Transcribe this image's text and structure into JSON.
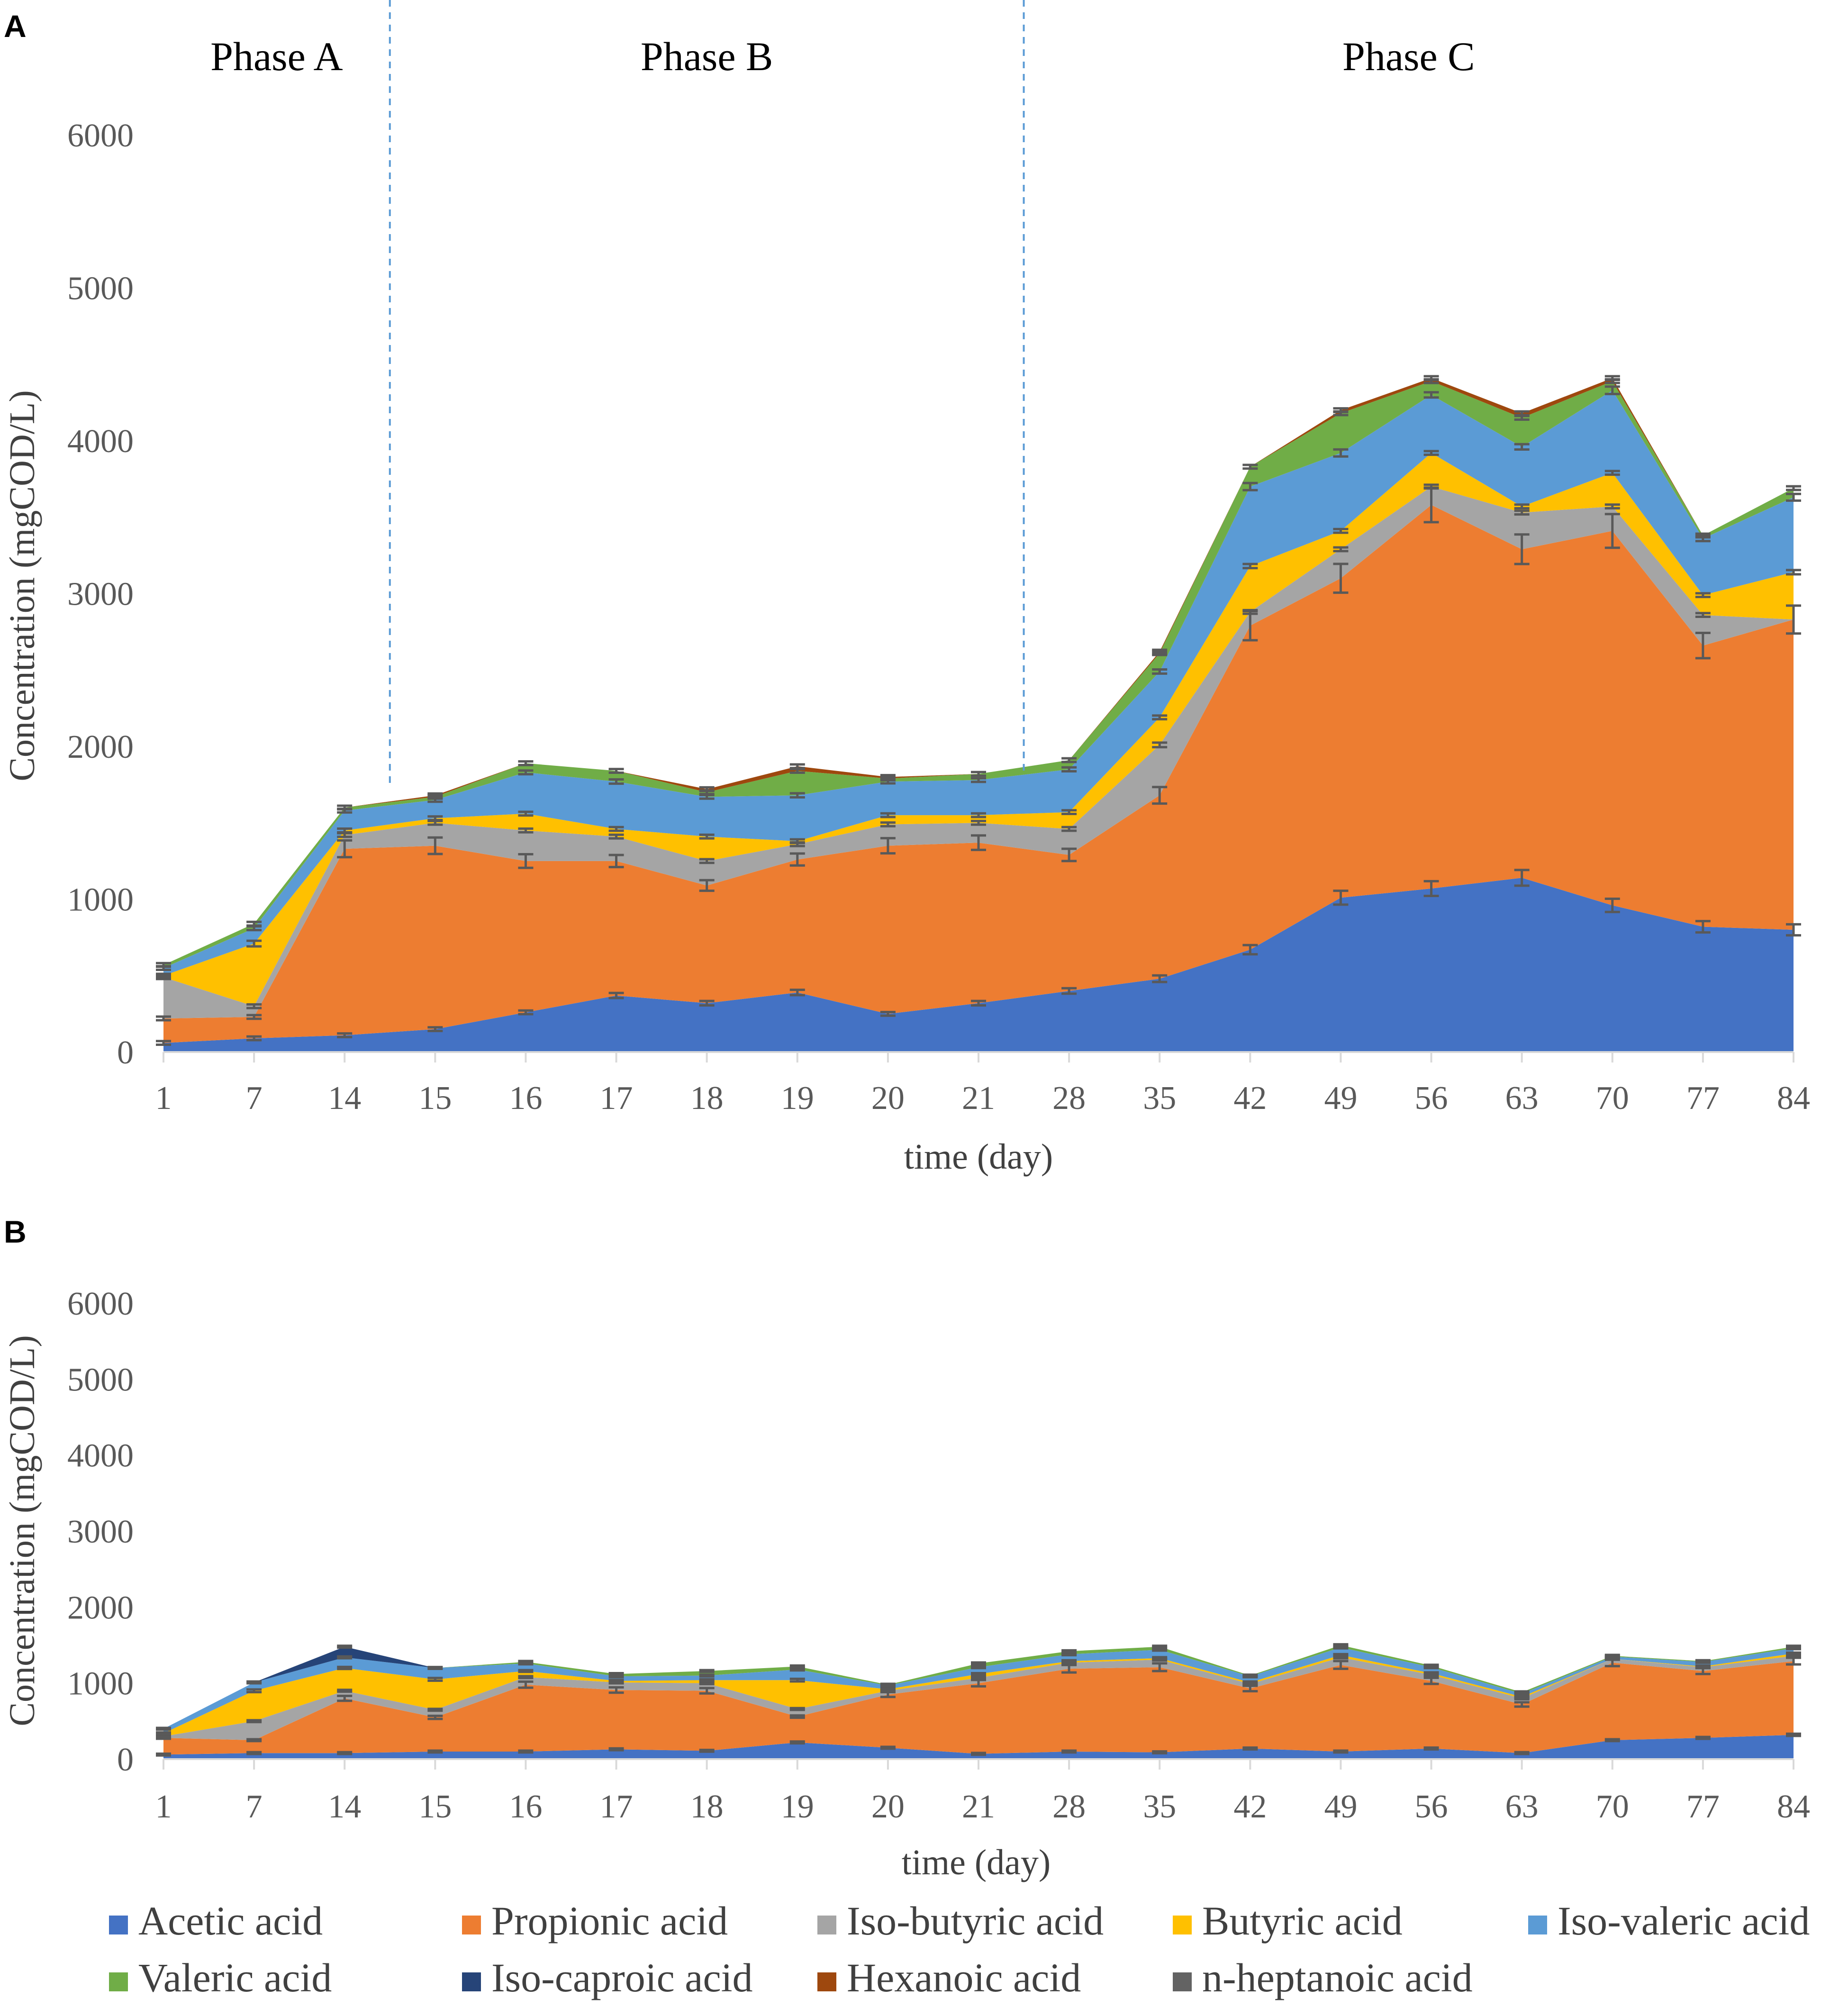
{
  "chart_data": [
    {
      "type": "area",
      "stacked": true,
      "panel_label": "A",
      "x": [
        "1",
        "7",
        "14",
        "15",
        "16",
        "17",
        "18",
        "19",
        "20",
        "21",
        "28",
        "35",
        "42",
        "49",
        "56",
        "63",
        "70",
        "77",
        "84"
      ],
      "xlabel": "time (day)",
      "ylabel": "Concentration (mgCOD/L)",
      "ylim": [
        0,
        6000
      ],
      "yticks": [
        "0",
        "1000",
        "2000",
        "3000",
        "4000",
        "5000",
        "6000"
      ],
      "phases": [
        {
          "label": "Phase A",
          "start_index": 0,
          "end_index": 2
        },
        {
          "label": "Phase B",
          "start_index": 3,
          "end_index": 9
        },
        {
          "label": "Phase C",
          "start_index": 10,
          "end_index": 18
        }
      ],
      "phase_boundaries_after_index": [
        2,
        9
      ],
      "error_bars": true,
      "series": [
        {
          "name": "Acetic acid",
          "values": [
            60,
            90,
            110,
            150,
            260,
            370,
            320,
            390,
            250,
            320,
            400,
            480,
            670,
            1010,
            1070,
            1140,
            960,
            820,
            800
          ]
        },
        {
          "name": "Propionic acid",
          "values": [
            160,
            140,
            1220,
            1200,
            990,
            880,
            770,
            870,
            1100,
            1050,
            890,
            1200,
            2120,
            2090,
            2510,
            2150,
            2450,
            1840,
            2030
          ]
        },
        {
          "name": "Iso-butyric acid",
          "values": [
            270,
            70,
            90,
            150,
            200,
            160,
            160,
            100,
            140,
            130,
            170,
            330,
            90,
            190,
            120,
            240,
            160,
            200,
            0
          ]
        },
        {
          "name": "Butyric acid",
          "values": [
            10,
            410,
            30,
            30,
            110,
            50,
            160,
            20,
            60,
            50,
            110,
            180,
            300,
            120,
            220,
            40,
            220,
            130,
            310
          ]
        },
        {
          "name": "Iso-valeric acid",
          "values": [
            50,
            100,
            130,
            120,
            270,
            310,
            260,
            300,
            220,
            230,
            280,
            300,
            520,
            510,
            380,
            390,
            540,
            370,
            490
          ]
        },
        {
          "name": "Valeric acid",
          "values": [
            20,
            30,
            20,
            20,
            60,
            70,
            30,
            160,
            20,
            40,
            60,
            120,
            130,
            260,
            90,
            190,
            60,
            20,
            60
          ]
        },
        {
          "name": "Iso-caproic acid",
          "values": [
            0,
            0,
            0,
            0,
            0,
            0,
            0,
            0,
            0,
            0,
            0,
            0,
            0,
            0,
            0,
            0,
            0,
            0,
            0
          ]
        },
        {
          "name": "Hexanoic acid",
          "values": [
            0,
            0,
            0,
            10,
            0,
            0,
            20,
            30,
            10,
            0,
            0,
            10,
            0,
            20,
            20,
            30,
            20,
            0,
            0
          ]
        },
        {
          "name": "n-heptanoic acid",
          "values": [
            0,
            0,
            0,
            0,
            0,
            0,
            0,
            0,
            0,
            0,
            0,
            0,
            0,
            0,
            0,
            0,
            0,
            0,
            0
          ]
        }
      ]
    },
    {
      "type": "area",
      "stacked": true,
      "panel_label": "B",
      "x": [
        "1",
        "7",
        "14",
        "15",
        "16",
        "17",
        "18",
        "19",
        "20",
        "21",
        "28",
        "35",
        "42",
        "49",
        "56",
        "63",
        "70",
        "77",
        "84"
      ],
      "xlabel": "time (day)",
      "ylabel": "Concentration (mgCOD/L)",
      "ylim": [
        0,
        6000
      ],
      "yticks": [
        "0",
        "1000",
        "2000",
        "3000",
        "4000",
        "5000",
        "6000"
      ],
      "error_bars": true,
      "series": [
        {
          "name": "Acetic acid",
          "values": [
            60,
            80,
            80,
            100,
            100,
            130,
            110,
            220,
            150,
            70,
            100,
            90,
            140,
            100,
            140,
            80,
            250,
            280,
            320
          ]
        },
        {
          "name": "Propionic acid",
          "values": [
            220,
            170,
            720,
            450,
            880,
            780,
            790,
            340,
            700,
            930,
            1090,
            1120,
            790,
            1140,
            890,
            640,
            1020,
            880,
            970
          ]
        },
        {
          "name": "Iso-butyric acid",
          "values": [
            20,
            250,
            100,
            100,
            100,
            100,
            100,
            100,
            50,
            70,
            80,
            100,
            60,
            100,
            80,
            80,
            50,
            50,
            70
          ]
        },
        {
          "name": "Butyric acid",
          "values": [
            40,
            400,
            300,
            400,
            80,
            20,
            40,
            380,
            20,
            50,
            20,
            20,
            20,
            30,
            20,
            20,
            0,
            10,
            30
          ]
        },
        {
          "name": "Iso-valeric acid",
          "values": [
            60,
            110,
            140,
            150,
            100,
            60,
            60,
            140,
            50,
            90,
            90,
            110,
            80,
            100,
            80,
            40,
            30,
            60,
            70
          ]
        },
        {
          "name": "Valeric acid",
          "values": [
            0,
            0,
            0,
            0,
            20,
            30,
            60,
            40,
            10,
            50,
            40,
            40,
            10,
            30,
            20,
            20,
            10,
            10,
            20
          ]
        },
        {
          "name": "Iso-caproic acid",
          "values": [
            0,
            0,
            140,
            0,
            0,
            0,
            0,
            0,
            0,
            0,
            0,
            0,
            0,
            0,
            0,
            0,
            0,
            0,
            0
          ]
        },
        {
          "name": "Hexanoic acid",
          "values": [
            0,
            0,
            0,
            0,
            0,
            0,
            0,
            0,
            0,
            0,
            0,
            0,
            0,
            0,
            0,
            0,
            0,
            0,
            0
          ]
        },
        {
          "name": "n-heptanoic acid",
          "values": [
            0,
            0,
            0,
            0,
            0,
            0,
            0,
            0,
            0,
            0,
            0,
            0,
            0,
            0,
            0,
            0,
            0,
            0,
            0
          ]
        }
      ]
    }
  ],
  "legend": [
    {
      "name": "Acetic acid",
      "color": "#4472C4"
    },
    {
      "name": "Propionic acid",
      "color": "#ED7D31"
    },
    {
      "name": "Iso-butyric acid",
      "color": "#A5A5A5"
    },
    {
      "name": "Butyric acid",
      "color": "#FFC000"
    },
    {
      "name": "Iso-valeric acid",
      "color": "#5B9BD5"
    },
    {
      "name": "Valeric acid",
      "color": "#70AD47"
    },
    {
      "name": "Iso-caproic acid",
      "color": "#264478"
    },
    {
      "name": "Hexanoic acid",
      "color": "#9E480E"
    },
    {
      "name": "n-heptanoic acid",
      "color": "#636363"
    }
  ]
}
